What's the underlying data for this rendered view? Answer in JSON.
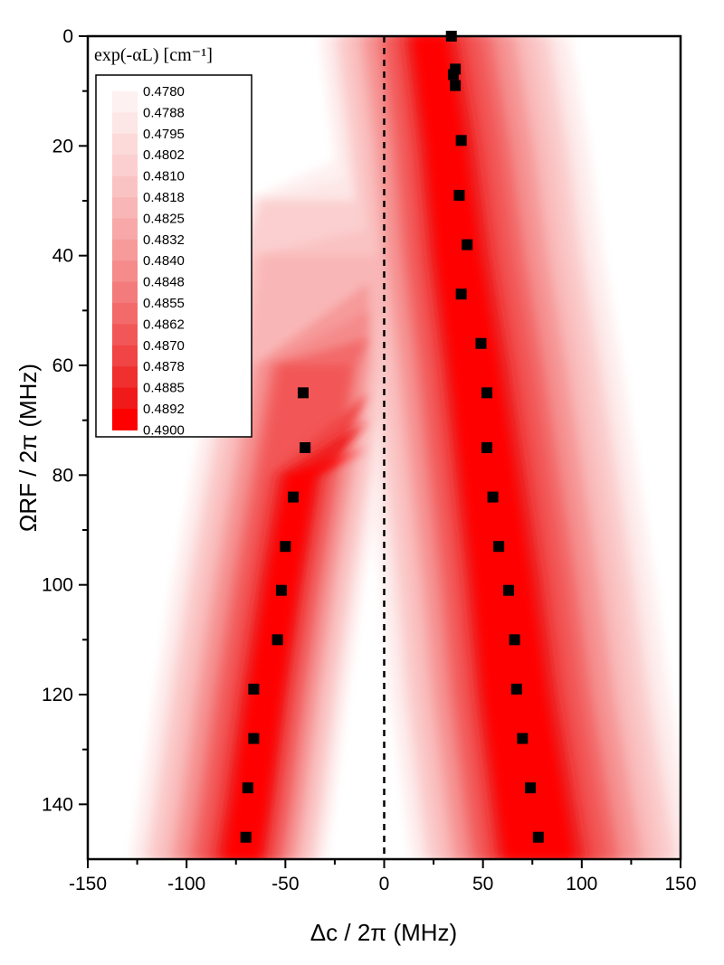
{
  "chart_data": {
    "type": "heatmap",
    "xlabel": "Δc / 2π (MHz)",
    "ylabel": "ΩRF / 2π (MHz)",
    "xlim": [
      -150,
      150
    ],
    "ylim": [
      0,
      150
    ],
    "y_axis_inverted": true,
    "x_ticks": [
      "-150",
      "-100",
      "-50",
      "0",
      "50",
      "100",
      "150"
    ],
    "y_ticks": [
      "0",
      "20",
      "40",
      "60",
      "80",
      "100",
      "120",
      "140"
    ],
    "x_tick_values": [
      -150,
      -100,
      -50,
      0,
      50,
      100,
      150
    ],
    "y_tick_values": [
      0,
      20,
      40,
      60,
      80,
      100,
      120,
      140
    ],
    "reference_line": {
      "x": 0,
      "style": "dashed"
    },
    "colorscale": {
      "title": "exp(-αL) [cm⁻¹]",
      "levels": [
        "0.4780",
        "0.4788",
        "0.4795",
        "0.4802",
        "0.4810",
        "0.4818",
        "0.4825",
        "0.4832",
        "0.4840",
        "0.4848",
        "0.4855",
        "0.4862",
        "0.4870",
        "0.4878",
        "0.4885",
        "0.4892",
        "0.4900"
      ],
      "colors": [
        "#ffffff",
        "#fef1f1",
        "#fde6e6",
        "#fcdada",
        "#fbcfcf",
        "#fac3c3",
        "#f9b6b6",
        "#f8a8a8",
        "#f69a9a",
        "#f58b8b",
        "#f47b7b",
        "#f36a6a",
        "#f25757",
        "#f14444",
        "#f02f2f",
        "#f01a1a",
        "#ff0000"
      ],
      "legend_position": "top-left"
    },
    "series": [
      {
        "marker": "square",
        "color": "#000000",
        "points": [
          {
            "x": 34,
            "y": 0
          },
          {
            "x": 36,
            "y": 6
          },
          {
            "x": 35,
            "y": 7
          },
          {
            "x": 36,
            "y": 9
          },
          {
            "x": 39,
            "y": 19
          },
          {
            "x": 38,
            "y": 29
          },
          {
            "x": 42,
            "y": 38
          },
          {
            "x": 39,
            "y": 47
          },
          {
            "x": 49,
            "y": 56
          },
          {
            "x": 52,
            "y": 65
          },
          {
            "x": 52,
            "y": 75
          },
          {
            "x": 55,
            "y": 84
          },
          {
            "x": 58,
            "y": 93
          },
          {
            "x": 63,
            "y": 101
          },
          {
            "x": 66,
            "y": 110
          },
          {
            "x": 67,
            "y": 119
          },
          {
            "x": 70,
            "y": 128
          },
          {
            "x": 74,
            "y": 137
          },
          {
            "x": 78,
            "y": 146
          },
          {
            "x": -41,
            "y": 65
          },
          {
            "x": -40,
            "y": 75
          },
          {
            "x": -46,
            "y": 84
          },
          {
            "x": -50,
            "y": 93
          },
          {
            "x": -52,
            "y": 101
          },
          {
            "x": -54,
            "y": 110
          },
          {
            "x": -66,
            "y": 119
          },
          {
            "x": -66,
            "y": 128
          },
          {
            "x": -69,
            "y": 137
          },
          {
            "x": -70,
            "y": 146
          }
        ]
      }
    ]
  }
}
